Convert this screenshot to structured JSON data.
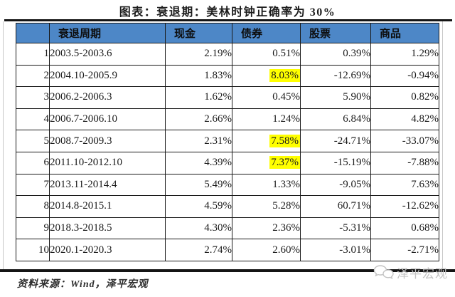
{
  "header": {
    "title": "图表：衰退期：美林时钟正确率为 30%"
  },
  "chart_data": {
    "type": "table",
    "title": "衰退期：美林时钟正确率为 30%",
    "headers": [
      "",
      "衰退周期",
      "现金",
      "债券",
      "股票",
      "商品"
    ],
    "rows": [
      {
        "num": "1",
        "period": "2003.5-2003.6",
        "cash": "2.19%",
        "bond": "0.51%",
        "stock": "0.39%",
        "commodity": "1.29%",
        "bond_highlight": false
      },
      {
        "num": "2",
        "period": "2004.10-2005.9",
        "cash": "1.83%",
        "bond": "8.03%",
        "stock": "-12.69%",
        "commodity": "-0.94%",
        "bond_highlight": true
      },
      {
        "num": "3",
        "period": "2006.2-2006.3",
        "cash": "1.62%",
        "bond": "0.45%",
        "stock": "5.90%",
        "commodity": "0.82%",
        "bond_highlight": false
      },
      {
        "num": "4",
        "period": "2006.7-2006.10",
        "cash": "2.66%",
        "bond": "1.24%",
        "stock": "6.84%",
        "commodity": "4.82%",
        "bond_highlight": false
      },
      {
        "num": "5",
        "period": "2008.7-2009.3",
        "cash": "2.31%",
        "bond": "7.58%",
        "stock": "-24.71%",
        "commodity": "-33.07%",
        "bond_highlight": true
      },
      {
        "num": "6",
        "period": "2011.10-2012.10",
        "cash": "4.39%",
        "bond": "7.37%",
        "stock": "-15.19%",
        "commodity": "-7.88%",
        "bond_highlight": true
      },
      {
        "num": "7",
        "period": "2013.11-2014.4",
        "cash": "5.49%",
        "bond": "1.33%",
        "stock": "-9.05%",
        "commodity": "7.63%",
        "bond_highlight": false
      },
      {
        "num": "8",
        "period": "2014.8-2015.1",
        "cash": "4.59%",
        "bond": "5.28%",
        "stock": "60.71%",
        "commodity": "-12.62%",
        "bond_highlight": false
      },
      {
        "num": "9",
        "period": "2018.3-2018.5",
        "cash": "4.30%",
        "bond": "2.36%",
        "stock": "-5.31%",
        "commodity": "0.68%",
        "bond_highlight": false
      },
      {
        "num": "10",
        "period": "2020.1-2020.3",
        "cash": "2.74%",
        "bond": "2.60%",
        "stock": "-3.01%",
        "commodity": "-2.71%",
        "bond_highlight": false
      }
    ],
    "highlighted_bond_rows": [
      2,
      5,
      6
    ],
    "legend_position": "none",
    "grid": true
  },
  "footer": {
    "source": "资料来源：Wind，泽平宏观",
    "watermark_label": "泽平宏观",
    "watermark_icon": "chat-bubbles-icon"
  },
  "colors": {
    "header_bg": "#4d87c7",
    "highlight_bg": "#ffff00",
    "rule": "#141414",
    "watermark": "#c3c3c3"
  }
}
